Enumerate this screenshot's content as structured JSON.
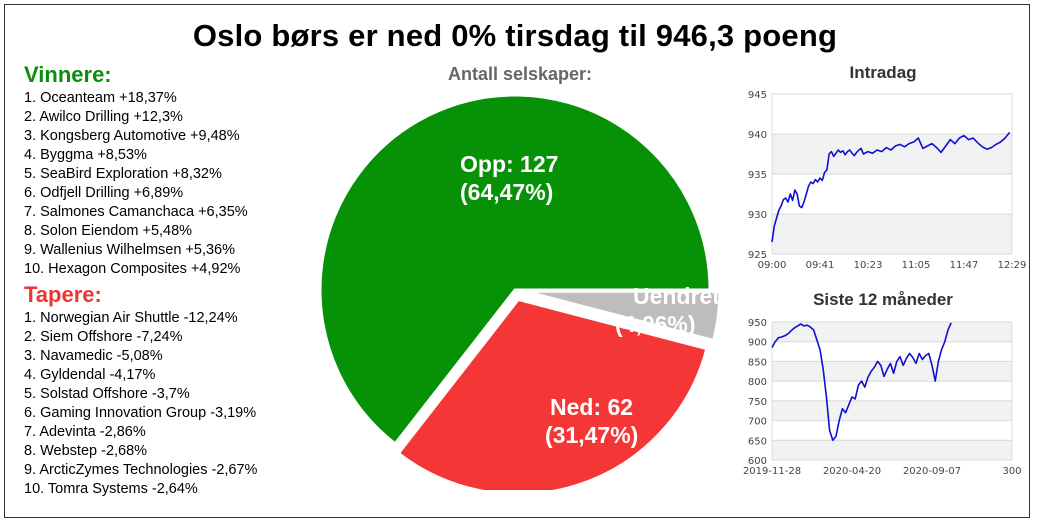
{
  "title": "Oslo børs er ned 0% tirsdag til 946,3 poeng",
  "winners": {
    "heading": "Vinnere:",
    "items": [
      "1. Oceanteam +18,37%",
      "2. Awilco Drilling +12,3%",
      "3. Kongsberg Automotive +9,48%",
      "4. Byggma +8,53%",
      "5. SeaBird Exploration +8,32%",
      "6. Odfjell Drilling +6,89%",
      "7. Salmones Camanchaca +6,35%",
      "8. Solon Eiendom +5,48%",
      "9. Wallenius Wilhelmsen +5,36%",
      "10. Hexagon Composites +4,92%"
    ]
  },
  "losers": {
    "heading": "Tapere:",
    "items": [
      "1. Norwegian Air Shuttle -12,24%",
      "2. Siem Offshore -7,24%",
      "3. Navamedic -5,08%",
      "4. Gyldendal -4,17%",
      "5. Solstad Offshore -3,7%",
      "6. Gaming Innovation Group -3,19%",
      "7. Adevinta -2,86%",
      "8. Webstep -2,68%",
      "9. ArcticZymes Technologies -2,67%",
      "10. Tomra Systems -2,64%"
    ]
  },
  "colors": {
    "up": "#079107",
    "down": "#f53636",
    "unchanged": "#bdbdbd",
    "line": "#1010d0",
    "winners_heading": "#0a8f0a",
    "losers_heading": "#f03434"
  },
  "chart_data": [
    {
      "type": "pie",
      "title": "Antall selskaper:",
      "slices": [
        {
          "key": "up",
          "label": "Opp",
          "value": 127,
          "percent": "64,47%",
          "line1": "Opp: 127",
          "line2": "(64,47%)"
        },
        {
          "key": "unchanged",
          "label": "Uendret",
          "value": 8,
          "percent": "4,06%",
          "line1": "Uendret: 8",
          "line2": "(4,06%)"
        },
        {
          "key": "down",
          "label": "Ned",
          "value": 62,
          "percent": "31,47%",
          "line1": "Ned: 62",
          "line2": "(31,47%)"
        }
      ]
    },
    {
      "type": "line",
      "title": "Intradag",
      "ylim": [
        925,
        945
      ],
      "yticks": [
        925,
        930,
        935,
        940,
        945
      ],
      "xticks": [
        "09:00",
        "09:41",
        "10:23",
        "11:05",
        "11:47",
        "12:29"
      ],
      "x_range": [
        0,
        210
      ],
      "x": [
        0,
        2,
        4,
        6,
        8,
        10,
        12,
        14,
        16,
        18,
        20,
        22,
        24,
        26,
        28,
        30,
        32,
        34,
        36,
        38,
        40,
        42,
        44,
        46,
        48,
        50,
        52,
        54,
        56,
        58,
        60,
        62,
        64,
        66,
        68,
        70,
        72,
        74,
        76,
        78,
        80,
        84,
        88,
        92,
        96,
        100,
        104,
        108,
        112,
        116,
        120,
        124,
        128,
        132,
        136,
        140,
        144,
        148,
        152,
        156,
        160,
        164,
        168,
        172,
        176,
        180,
        184,
        188,
        192,
        196,
        200,
        204,
        208
      ],
      "values": [
        926.5,
        928.5,
        929.5,
        930.5,
        931,
        931.8,
        932,
        931.5,
        932.5,
        931.7,
        933,
        932.5,
        931,
        930.8,
        931.5,
        932.5,
        933.5,
        934,
        933.8,
        934.3,
        934,
        934.5,
        934.2,
        935.2,
        935.5,
        937.5,
        937.8,
        937.2,
        937.6,
        938,
        937.7,
        937.9,
        937.4,
        937.8,
        938,
        937.6,
        937.3,
        937.7,
        938,
        938.2,
        937.5,
        937.8,
        937.6,
        938,
        937.8,
        938.3,
        938,
        938.5,
        938.7,
        938.4,
        938.8,
        939,
        939.5,
        938.2,
        938.5,
        938.8,
        938.3,
        937.7,
        938.5,
        939.3,
        938.8,
        939.5,
        939.8,
        939.3,
        939.5,
        938.9,
        938.4,
        938.1,
        938.3,
        938.7,
        939,
        939.5,
        940.2
      ]
    },
    {
      "type": "line",
      "title": "Siste 12 måneder",
      "ylim": [
        600,
        950
      ],
      "yticks": [
        600,
        650,
        700,
        750,
        800,
        850,
        900,
        950
      ],
      "xticks": [
        "2019-11-28",
        "2020-04-20",
        "2020-09-07",
        "300"
      ],
      "x_range": [
        0,
        300
      ],
      "x": [
        0,
        4,
        8,
        12,
        16,
        20,
        24,
        28,
        32,
        36,
        40,
        44,
        48,
        52,
        56,
        60,
        64,
        68,
        72,
        76,
        80,
        84,
        88,
        92,
        96,
        100,
        104,
        108,
        112,
        116,
        120,
        124,
        128,
        132,
        136,
        140,
        144,
        148,
        152,
        156,
        160,
        164,
        168,
        172,
        176,
        180,
        184,
        188,
        192,
        196,
        200,
        204,
        208,
        212,
        216,
        220,
        224
      ],
      "values": [
        885,
        900,
        910,
        912,
        915,
        920,
        928,
        935,
        940,
        945,
        940,
        942,
        937,
        930,
        905,
        880,
        830,
        760,
        675,
        650,
        660,
        700,
        730,
        720,
        740,
        760,
        755,
        790,
        800,
        785,
        810,
        825,
        835,
        850,
        840,
        812,
        830,
        845,
        820,
        850,
        862,
        840,
        858,
        870,
        860,
        845,
        870,
        855,
        865,
        870,
        840,
        800,
        850,
        880,
        900,
        930,
        948
      ]
    }
  ]
}
